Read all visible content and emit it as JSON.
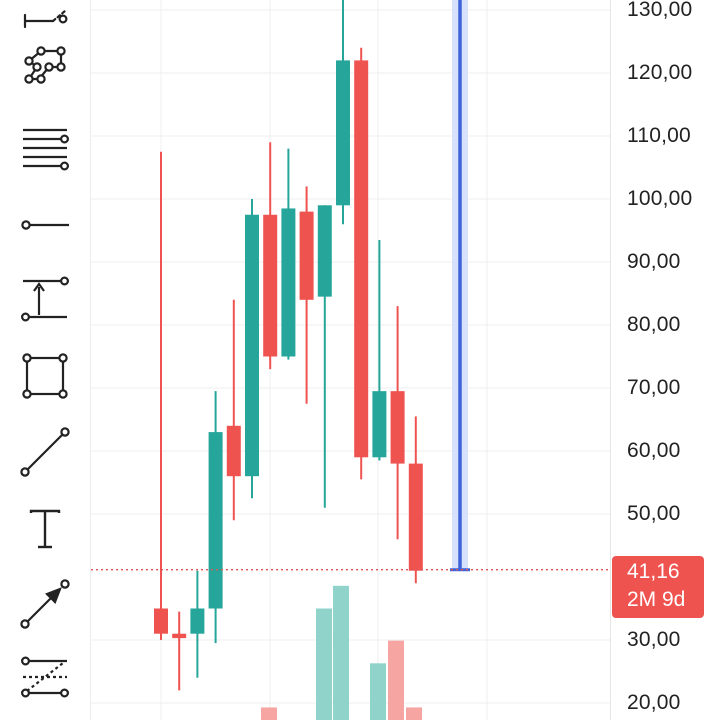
{
  "colors": {
    "up": "#26a69a",
    "down": "#ef5350",
    "vol_up": "#8fd3cb",
    "vol_down": "#f6a5a3",
    "measure": "#3f63d9",
    "measure_fill": "#d6e2fb",
    "grid": "#efefef",
    "last_price_line": "#e05353"
  },
  "toolbar": {
    "items": [
      {
        "icon": "pitchfork-icon"
      },
      {
        "icon": "pattern-icon"
      },
      {
        "icon": "horizontal-lines-icon"
      },
      {
        "icon": "horizontal-ray-icon"
      },
      {
        "icon": "price-range-icon"
      },
      {
        "icon": "rectangle-icon"
      },
      {
        "icon": "trend-line-icon"
      },
      {
        "icon": "text-icon"
      },
      {
        "icon": "arrow-icon"
      },
      {
        "icon": "fib-retracement-icon"
      }
    ]
  },
  "price_tag": {
    "price": "41,16",
    "countdown": "2M 9d"
  },
  "chart_data": {
    "type": "candlestick",
    "y_range": [
      16,
      133
    ],
    "y_ticks": [
      "130,00",
      "120,00",
      "110,00",
      "100,00",
      "90,00",
      "80,00",
      "70,00",
      "60,00",
      "50,00",
      "30,00",
      "20,00"
    ],
    "last_price": 41.16,
    "candles": [
      {
        "open": 35,
        "high": 107.5,
        "low": 30,
        "close": 31
      },
      {
        "open": 31,
        "high": 34.5,
        "low": 22,
        "close": 30.3
      },
      {
        "open": 31,
        "high": 41,
        "low": 24,
        "close": 35
      },
      {
        "open": 35,
        "high": 69.5,
        "low": 29.5,
        "close": 63
      },
      {
        "open": 64,
        "high": 84,
        "low": 49,
        "close": 56
      },
      {
        "open": 56,
        "high": 100,
        "low": 52.5,
        "close": 97.5
      },
      {
        "open": 97.5,
        "high": 109,
        "low": 73,
        "close": 75
      },
      {
        "open": 75,
        "high": 108,
        "low": 74.5,
        "close": 98.5
      },
      {
        "open": 98,
        "high": 102,
        "low": 67.5,
        "close": 84
      },
      {
        "open": 84.5,
        "high": 99,
        "low": 51,
        "close": 99
      },
      {
        "open": 99,
        "high": 133,
        "low": 96,
        "close": 122
      },
      {
        "open": 122,
        "high": 124,
        "low": 55.5,
        "close": 59
      },
      {
        "open": 59,
        "high": 93.5,
        "low": 58.5,
        "close": 69.5
      },
      {
        "open": 69.5,
        "high": 83,
        "low": 46,
        "close": 58
      },
      {
        "open": 58,
        "high": 65.5,
        "low": 39,
        "close": 41
      }
    ],
    "volumes": [
      {
        "value": 19.3,
        "dir": "down"
      },
      {
        "value": 35,
        "dir": "up"
      },
      {
        "value": 38.6,
        "dir": "up"
      },
      {
        "value": 26.3,
        "dir": "up"
      },
      {
        "value": 29.9,
        "dir": "down"
      },
      {
        "value": 19.3,
        "dir": "down"
      }
    ]
  }
}
